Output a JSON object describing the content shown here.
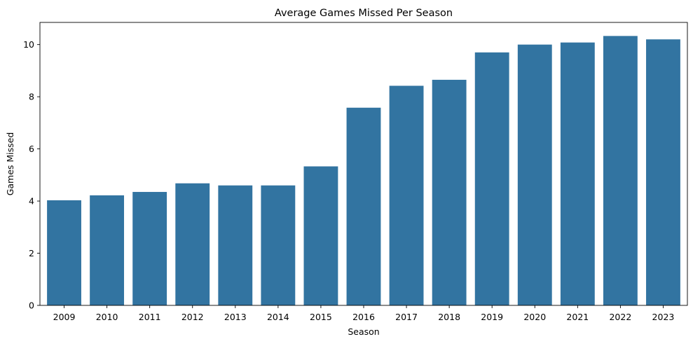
{
  "chart_data": {
    "type": "bar",
    "title": "Average Games Missed Per Season",
    "xlabel": "Season",
    "ylabel": "Games Missed",
    "categories": [
      "2009",
      "2010",
      "2011",
      "2012",
      "2013",
      "2014",
      "2015",
      "2016",
      "2017",
      "2018",
      "2019",
      "2020",
      "2021",
      "2022",
      "2023"
    ],
    "values": [
      4.03,
      4.22,
      4.35,
      4.68,
      4.6,
      4.6,
      5.33,
      7.58,
      8.42,
      8.65,
      9.7,
      10.0,
      10.08,
      10.33,
      10.2
    ],
    "ylim": [
      0,
      10.85
    ],
    "yticks": [
      "0",
      "2",
      "4",
      "6",
      "8",
      "10"
    ],
    "bar_color": "#3274a1",
    "grid": false,
    "legend": "none"
  }
}
